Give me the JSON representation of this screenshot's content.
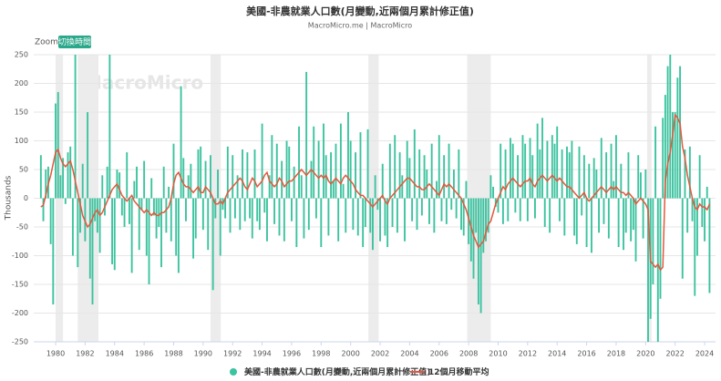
{
  "chart_data": {
    "type": "bar+line",
    "title": "美國-非農就業人口數(月變動,近兩個月累計修正值)",
    "subtitle": "MacroMicro.me | MacroMicro",
    "zoom_label": "Zoom",
    "zoom_button": "切換時間",
    "watermark": "MacroMicro",
    "y_label": "Thousands",
    "ylim": [
      -250,
      250
    ],
    "yticks": [
      -250,
      -200,
      -150,
      -100,
      -50,
      0,
      50,
      100,
      150,
      200,
      250
    ],
    "grid": true,
    "shaded_periods": [
      [
        1980.0,
        1980.5
      ],
      [
        1981.5,
        1982.9
      ],
      [
        1990.5,
        1991.2
      ],
      [
        2001.2,
        2001.9
      ],
      [
        2007.9,
        2009.5
      ],
      [
        2020.1,
        2020.4
      ]
    ],
    "categories": [
      null,
      null,
      null,
      null,
      null,
      null,
      "1980",
      null,
      null,
      null,
      null,
      null,
      null,
      null,
      null,
      null,
      null,
      null,
      "1982",
      null,
      null,
      null,
      null,
      null,
      null,
      null,
      null,
      null,
      null,
      null,
      "1984",
      null,
      null,
      null,
      null,
      null,
      null,
      null,
      null,
      null,
      null,
      null,
      "1986",
      null,
      null,
      null,
      null,
      null,
      null,
      null,
      null,
      null,
      null,
      null,
      "1988",
      null,
      null,
      null,
      null,
      null,
      null,
      null,
      null,
      null,
      null,
      null,
      "1990",
      null,
      null,
      null,
      null,
      null,
      null,
      null,
      null,
      null,
      null,
      null,
      "1992",
      null,
      null,
      null,
      null,
      null,
      null,
      null,
      null,
      null,
      null,
      null,
      "1994",
      null,
      null,
      null,
      null,
      null,
      null,
      null,
      null,
      null,
      null,
      null,
      "1996",
      null,
      null,
      null,
      null,
      null,
      null,
      null,
      null,
      null,
      null,
      null,
      "1998",
      null,
      null,
      null,
      null,
      null,
      null,
      null,
      null,
      null,
      null,
      null,
      "2000",
      null,
      null,
      null,
      null,
      null,
      null,
      null,
      null,
      null,
      null,
      null,
      "2002",
      null,
      null,
      null,
      null,
      null,
      null,
      null,
      null,
      null,
      null,
      null,
      "2004",
      null,
      null,
      null,
      null,
      null,
      null,
      null,
      null,
      null,
      null,
      null,
      "2006",
      null,
      null,
      null,
      null,
      null,
      null,
      null,
      null,
      null,
      null,
      null,
      "2008",
      null,
      null,
      null,
      null,
      null,
      null,
      null,
      null,
      null,
      null,
      null,
      "2010",
      null,
      null,
      null,
      null,
      null,
      null,
      null,
      null,
      null,
      null,
      null,
      "2012",
      null,
      null,
      null,
      null,
      null,
      null,
      null,
      null,
      null,
      null,
      null,
      "2014",
      null,
      null,
      null,
      null,
      null,
      null,
      null,
      null,
      null,
      null,
      null,
      "2016",
      null,
      null,
      null,
      null,
      null,
      null,
      null,
      null,
      null,
      null,
      null,
      "2018",
      null,
      null,
      null,
      null,
      null,
      null,
      null,
      null,
      null,
      null,
      null,
      "2020",
      null,
      null,
      null,
      null,
      null,
      null,
      null,
      null,
      null,
      null,
      null,
      "2022",
      null,
      null,
      null,
      null,
      null,
      null,
      null,
      null,
      null,
      null,
      null,
      "2024",
      null,
      null
    ],
    "series": [
      {
        "name": "美國-非農就業人口數(月變動,近兩個月累計修正值)",
        "color": "#3cc39f",
        "kind": "bar",
        "values": [
          75,
          -40,
          50,
          55,
          -80,
          -185,
          165,
          185,
          40,
          70,
          -10,
          80,
          90,
          -100,
          250,
          -120,
          -60,
          60,
          -75,
          150,
          -140,
          -185,
          -40,
          -60,
          -95,
          40,
          -30,
          55,
          250,
          -115,
          -125,
          50,
          45,
          -30,
          -50,
          80,
          -45,
          -130,
          30,
          55,
          -90,
          -20,
          65,
          -100,
          -150,
          35,
          -30,
          -70,
          -50,
          -120,
          55,
          -60,
          20,
          -75,
          95,
          -100,
          -130,
          195,
          70,
          -40,
          40,
          60,
          -105,
          -70,
          85,
          90,
          -55,
          65,
          -90,
          75,
          -160,
          -35,
          50,
          -100,
          -20,
          -35,
          90,
          -60,
          75,
          -35,
          40,
          -55,
          85,
          -40,
          80,
          -35,
          -70,
          85,
          -40,
          -55,
          130,
          -25,
          -75,
          40,
          110,
          -45,
          95,
          -65,
          65,
          -75,
          100,
          90,
          -40,
          55,
          -85,
          125,
          40,
          -70,
          220,
          -55,
          65,
          125,
          -35,
          100,
          -85,
          130,
          75,
          -65,
          80,
          30,
          95,
          -75,
          130,
          25,
          -60,
          150,
          100,
          -55,
          80,
          -65,
          115,
          -85,
          -50,
          120,
          -60,
          -90,
          40,
          -20,
          -75,
          60,
          -65,
          -85,
          95,
          -50,
          110,
          -60,
          80,
          40,
          -75,
          100,
          70,
          -40,
          120,
          -55,
          85,
          -30,
          75,
          50,
          -45,
          95,
          -60,
          30,
          110,
          -40,
          75,
          -45,
          95,
          -20,
          50,
          -35,
          85,
          -55,
          -65,
          30,
          -80,
          -110,
          -140,
          -60,
          -185,
          -200,
          -95,
          -75,
          -60,
          40,
          20,
          -15,
          -25,
          95,
          -45,
          85,
          -40,
          105,
          95,
          -25,
          75,
          -40,
          110,
          95,
          -40,
          105,
          75,
          -35,
          130,
          85,
          140,
          -50,
          100,
          -60,
          110,
          95,
          125,
          -40,
          85,
          -65,
          90,
          80,
          100,
          -65,
          -80,
          90,
          -30,
          75,
          -85,
          60,
          -95,
          70,
          50,
          -60,
          105,
          -45,
          80,
          -70,
          95,
          30,
          110,
          -85,
          60,
          -90,
          -60,
          80,
          -75,
          -55,
          -110,
          75,
          45,
          -70,
          50,
          -250,
          -210,
          -150,
          125,
          -250,
          -175,
          140,
          180,
          230,
          250,
          150,
          150,
          210,
          230,
          -140,
          85,
          -60,
          90,
          -40,
          -170,
          -100,
          75,
          -50,
          -75,
          20,
          -165
        ]
      },
      {
        "name": "12個月移動平均",
        "color": "#e2583e",
        "kind": "line",
        "values": [
          -15,
          -12,
          5,
          25,
          40,
          60,
          80,
          85,
          70,
          60,
          55,
          60,
          65,
          50,
          30,
          10,
          -10,
          -30,
          -40,
          -50,
          -45,
          -35,
          -25,
          -20,
          -30,
          -25,
          -15,
          -5,
          5,
          15,
          20,
          25,
          15,
          5,
          0,
          -5,
          0,
          5,
          -5,
          -10,
          -15,
          -20,
          -25,
          -20,
          -25,
          -30,
          -25,
          -30,
          -30,
          -25,
          -25,
          -20,
          -15,
          0,
          25,
          40,
          45,
          35,
          25,
          20,
          20,
          15,
          10,
          15,
          20,
          10,
          10,
          20,
          15,
          10,
          0,
          -10,
          -10,
          -5,
          -10,
          0,
          10,
          15,
          20,
          25,
          30,
          35,
          30,
          20,
          15,
          25,
          35,
          30,
          20,
          25,
          30,
          40,
          45,
          30,
          25,
          20,
          25,
          35,
          30,
          20,
          25,
          30,
          30,
          35,
          40,
          45,
          50,
          45,
          40,
          45,
          50,
          45,
          40,
          35,
          40,
          35,
          40,
          30,
          25,
          30,
          35,
          30,
          25,
          35,
          40,
          35,
          30,
          25,
          15,
          10,
          5,
          5,
          0,
          -5,
          -10,
          -15,
          -10,
          -5,
          0,
          5,
          -5,
          -10,
          0,
          5,
          10,
          15,
          20,
          25,
          30,
          35,
          35,
          30,
          25,
          20,
          20,
          15,
          15,
          20,
          25,
          20,
          15,
          10,
          5,
          15,
          25,
          20,
          25,
          20,
          15,
          10,
          5,
          0,
          -10,
          -20,
          -35,
          -50,
          -65,
          -75,
          -85,
          -80,
          -75,
          -60,
          -45,
          -40,
          -25,
          -10,
          0,
          10,
          20,
          15,
          25,
          30,
          35,
          30,
          25,
          20,
          25,
          30,
          30,
          35,
          25,
          20,
          30,
          35,
          40,
          35,
          30,
          35,
          40,
          35,
          30,
          35,
          30,
          25,
          20,
          20,
          15,
          10,
          5,
          0,
          5,
          10,
          0,
          -5,
          0,
          5,
          10,
          15,
          20,
          15,
          10,
          15,
          20,
          15,
          20,
          15,
          10,
          10,
          5,
          10,
          5,
          0,
          -10,
          -5,
          0,
          -5,
          -10,
          -20,
          -110,
          -115,
          -120,
          -115,
          -125,
          -120,
          30,
          60,
          80,
          110,
          145,
          140,
          130,
          90,
          70,
          40,
          20,
          0,
          -15,
          -20,
          -10,
          -15,
          -15,
          -20,
          -10
        ]
      }
    ]
  }
}
